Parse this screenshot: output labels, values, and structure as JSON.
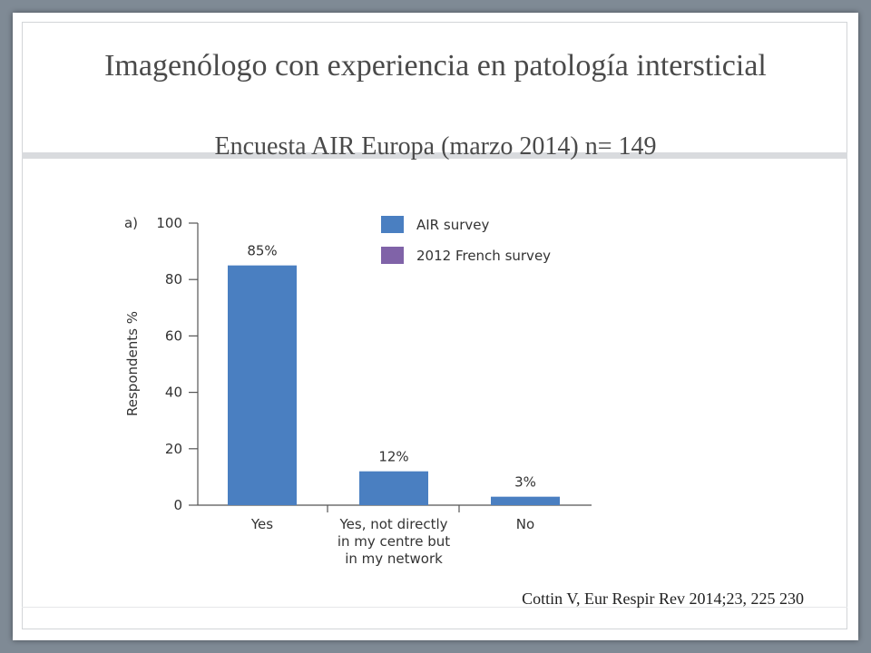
{
  "slide": {
    "title": "Imagenólogo con experiencia en patología intersticial",
    "subtitle": "Encuesta AIR Europa (marzo 2014) n= 149",
    "citation": "Cottin V, Eur Respir Rev 2014;23, 225 230"
  },
  "colors": {
    "air_survey": "#4a7fc1",
    "french_survey": "#8063a8",
    "axis": "#555555"
  },
  "chart_data": {
    "type": "bar",
    "panel_label": "a)",
    "categories": [
      [
        "Yes"
      ],
      [
        "Yes, not directly",
        "in my centre but",
        "in my network"
      ],
      [
        "No"
      ]
    ],
    "series": [
      {
        "name": "AIR survey",
        "values": [
          85,
          12,
          3
        ]
      },
      {
        "name": "2012 French survey",
        "values": [
          null,
          null,
          null
        ]
      }
    ],
    "data_labels": [
      "85%",
      "12%",
      "3%"
    ],
    "ylabel": "Respondents %",
    "xlabel": "",
    "ylim": [
      0,
      100
    ],
    "yticks": [
      0,
      20,
      40,
      60,
      80,
      100
    ],
    "legend_position": "top-right",
    "grid": false
  }
}
